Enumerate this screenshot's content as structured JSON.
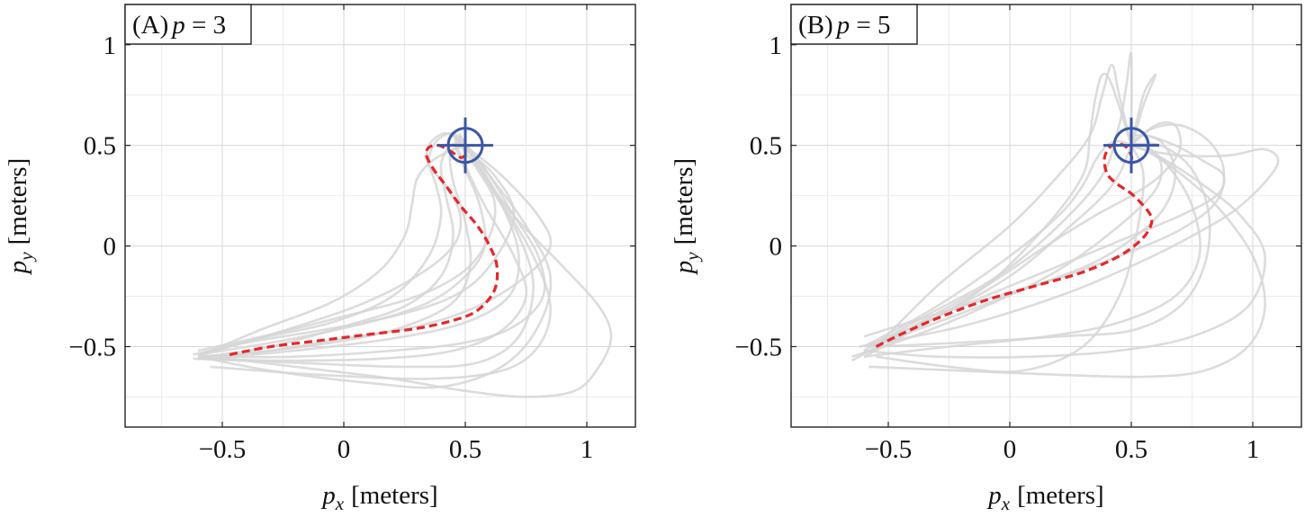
{
  "chart_data": [
    {
      "type": "line",
      "panel_label": "(A)",
      "title": "p = 3",
      "title_var": "p",
      "title_rest": " = 3",
      "xlabel_var": "p",
      "xlabel_sub": "x",
      "xlabel_unit": "[meters]",
      "ylabel_var": "p",
      "ylabel_sub": "y",
      "ylabel_unit": "[meters]",
      "xlim": [
        -0.9,
        1.2
      ],
      "ylim": [
        -0.9,
        1.2
      ],
      "xticks": [
        -0.5,
        0,
        0.5,
        1
      ],
      "xtick_labels": [
        "−0.5",
        "0",
        "0.5",
        "1"
      ],
      "yticks": [
        -0.5,
        0,
        0.5,
        1
      ],
      "ytick_labels": [
        "−0.5",
        "0",
        "0.5",
        "1"
      ],
      "grid": true,
      "target": {
        "x": 0.5,
        "y": 0.5,
        "color": "#3a56a6"
      },
      "highlight": {
        "color": "#e8262a",
        "style": "dashed",
        "x": [
          -0.47,
          -0.3,
          -0.1,
          0.1,
          0.3,
          0.45,
          0.55,
          0.62,
          0.63,
          0.6,
          0.55,
          0.48,
          0.42,
          0.37,
          0.34,
          0.35,
          0.39,
          0.44,
          0.48,
          0.5
        ],
        "y": [
          -0.54,
          -0.5,
          -0.47,
          -0.44,
          -0.41,
          -0.37,
          -0.32,
          -0.22,
          -0.1,
          0.0,
          0.1,
          0.2,
          0.3,
          0.38,
          0.45,
          0.49,
          0.5,
          0.47,
          0.44,
          0.45
        ]
      },
      "series": [
        {
          "x": [
            -0.62,
            -0.4,
            -0.1,
            0.2,
            0.45,
            0.6,
            0.7,
            0.62,
            0.5,
            0.45,
            0.5
          ],
          "y": [
            -0.54,
            -0.48,
            -0.42,
            -0.35,
            -0.25,
            -0.1,
            0.15,
            0.35,
            0.48,
            0.55,
            0.5
          ]
        },
        {
          "x": [
            -0.6,
            -0.3,
            0.0,
            0.3,
            0.55,
            0.75,
            0.85,
            0.8,
            0.65,
            0.5,
            0.48,
            0.5
          ],
          "y": [
            -0.56,
            -0.52,
            -0.46,
            -0.4,
            -0.3,
            -0.15,
            0.0,
            0.15,
            0.35,
            0.5,
            0.55,
            0.5
          ]
        },
        {
          "x": [
            -0.55,
            -0.2,
            0.2,
            0.5,
            0.75,
            0.95,
            1.05,
            1.1,
            1.05,
            0.9,
            0.7,
            0.55,
            0.48,
            0.5
          ],
          "y": [
            -0.55,
            -0.6,
            -0.66,
            -0.72,
            -0.75,
            -0.72,
            -0.6,
            -0.45,
            -0.3,
            -0.1,
            0.15,
            0.4,
            0.55,
            0.5
          ]
        },
        {
          "x": [
            -0.6,
            -0.3,
            0.1,
            0.4,
            0.65,
            0.8,
            0.85,
            0.75,
            0.6,
            0.5,
            0.5
          ],
          "y": [
            -0.55,
            -0.62,
            -0.68,
            -0.7,
            -0.6,
            -0.4,
            -0.15,
            0.1,
            0.35,
            0.5,
            0.5
          ]
        },
        {
          "x": [
            -0.58,
            -0.35,
            -0.05,
            0.2,
            0.35,
            0.4,
            0.38,
            0.35,
            0.38,
            0.45,
            0.5
          ],
          "y": [
            -0.54,
            -0.46,
            -0.38,
            -0.25,
            -0.05,
            0.15,
            0.3,
            0.42,
            0.52,
            0.56,
            0.5
          ]
        },
        {
          "x": [
            -0.6,
            -0.3,
            0.05,
            0.3,
            0.45,
            0.48,
            0.42,
            0.35,
            0.35,
            0.42,
            0.5
          ],
          "y": [
            -0.54,
            -0.44,
            -0.3,
            -0.15,
            0.0,
            0.15,
            0.3,
            0.4,
            0.5,
            0.56,
            0.5
          ]
        },
        {
          "x": [
            -0.62,
            -0.2,
            0.25,
            0.55,
            0.72,
            0.78,
            0.72,
            0.6,
            0.52,
            0.5
          ],
          "y": [
            -0.56,
            -0.58,
            -0.6,
            -0.58,
            -0.45,
            -0.2,
            0.05,
            0.3,
            0.46,
            0.5
          ]
        },
        {
          "x": [
            -0.6,
            -0.2,
            0.2,
            0.5,
            0.7,
            0.82,
            0.8,
            0.7,
            0.6,
            0.52,
            0.5
          ],
          "y": [
            -0.55,
            -0.55,
            -0.52,
            -0.48,
            -0.4,
            -0.25,
            -0.05,
            0.15,
            0.35,
            0.48,
            0.5
          ]
        },
        {
          "x": [
            -0.57,
            -0.3,
            0.0,
            0.25,
            0.4,
            0.45,
            0.42,
            0.4,
            0.44,
            0.5
          ],
          "y": [
            -0.55,
            -0.5,
            -0.4,
            -0.3,
            -0.15,
            0.05,
            0.25,
            0.4,
            0.5,
            0.5
          ]
        },
        {
          "x": [
            -0.6,
            -0.25,
            0.15,
            0.45,
            0.65,
            0.75,
            0.7,
            0.58,
            0.5,
            0.46,
            0.5
          ],
          "y": [
            -0.56,
            -0.57,
            -0.56,
            -0.52,
            -0.42,
            -0.25,
            -0.05,
            0.2,
            0.4,
            0.52,
            0.5
          ]
        },
        {
          "x": [
            -0.6,
            -0.25,
            0.1,
            0.35,
            0.5,
            0.58,
            0.56,
            0.5,
            0.46,
            0.5
          ],
          "y": [
            -0.54,
            -0.47,
            -0.38,
            -0.28,
            -0.15,
            0.0,
            0.2,
            0.38,
            0.5,
            0.5
          ]
        },
        {
          "x": [
            -0.6,
            -0.35,
            -0.05,
            0.15,
            0.25,
            0.28,
            0.3,
            0.36,
            0.45,
            0.5
          ],
          "y": [
            -0.55,
            -0.42,
            -0.28,
            -0.12,
            0.05,
            0.2,
            0.33,
            0.42,
            0.48,
            0.5
          ]
        },
        {
          "x": [
            -0.55,
            -0.1,
            0.35,
            0.65,
            0.8,
            0.85,
            0.78,
            0.65,
            0.55,
            0.5
          ],
          "y": [
            -0.6,
            -0.64,
            -0.66,
            -0.62,
            -0.5,
            -0.3,
            -0.05,
            0.22,
            0.42,
            0.5
          ]
        },
        {
          "x": [
            -0.6,
            -0.3,
            0.0,
            0.3,
            0.5,
            0.6,
            0.62,
            0.55,
            0.48,
            0.5
          ],
          "y": [
            -0.52,
            -0.44,
            -0.35,
            -0.25,
            -0.12,
            0.05,
            0.22,
            0.38,
            0.5,
            0.5
          ]
        },
        {
          "x": [
            -0.56,
            -0.2,
            0.2,
            0.5,
            0.68,
            0.72,
            0.66,
            0.56,
            0.5
          ],
          "y": [
            -0.56,
            -0.52,
            -0.46,
            -0.38,
            -0.25,
            -0.05,
            0.18,
            0.38,
            0.5
          ]
        },
        {
          "x": [
            -0.6,
            -0.3,
            0.0,
            0.25,
            0.45,
            0.52,
            0.5,
            0.45,
            0.44,
            0.5
          ],
          "y": [
            -0.55,
            -0.52,
            -0.47,
            -0.4,
            -0.28,
            -0.1,
            0.12,
            0.32,
            0.46,
            0.5
          ]
        }
      ]
    },
    {
      "type": "line",
      "panel_label": "(B)",
      "title": "p = 5",
      "title_var": "p",
      "title_rest": " = 5",
      "xlabel_var": "p",
      "xlabel_sub": "x",
      "xlabel_unit": "[meters]",
      "ylabel_var": "p",
      "ylabel_sub": "y",
      "ylabel_unit": "[meters]",
      "xlim": [
        -0.9,
        1.2
      ],
      "ylim": [
        -0.9,
        1.2
      ],
      "xticks": [
        -0.5,
        0,
        0.5,
        1
      ],
      "xtick_labels": [
        "−0.5",
        "0",
        "0.5",
        "1"
      ],
      "yticks": [
        -0.5,
        0,
        0.5,
        1
      ],
      "ytick_labels": [
        "−0.5",
        "0",
        "0.5",
        "1"
      ],
      "grid": true,
      "target": {
        "x": 0.5,
        "y": 0.5,
        "color": "#3a56a6"
      },
      "highlight": {
        "color": "#e8262a",
        "style": "dashed",
        "x": [
          -0.55,
          -0.45,
          -0.3,
          -0.1,
          0.1,
          0.3,
          0.45,
          0.54,
          0.58,
          0.58,
          0.55,
          0.5,
          0.44,
          0.4,
          0.39,
          0.42,
          0.47,
          0.5,
          0.5
        ],
        "y": [
          -0.5,
          -0.44,
          -0.36,
          -0.27,
          -0.2,
          -0.13,
          -0.05,
          0.03,
          0.1,
          0.15,
          0.2,
          0.26,
          0.31,
          0.36,
          0.44,
          0.5,
          0.5,
          0.45,
          0.4
        ]
      },
      "series": [
        {
          "x": [
            -0.65,
            -0.4,
            -0.1,
            0.2,
            0.45,
            0.6,
            0.62,
            0.55,
            0.5
          ],
          "y": [
            -0.55,
            -0.45,
            -0.3,
            -0.12,
            0.1,
            0.28,
            0.42,
            0.5,
            0.5
          ]
        },
        {
          "x": [
            -0.6,
            -0.3,
            0.0,
            0.2,
            0.3,
            0.35,
            0.4,
            0.45,
            0.5
          ],
          "y": [
            -0.5,
            -0.3,
            -0.05,
            0.15,
            0.3,
            0.42,
            0.5,
            0.52,
            0.5
          ]
        },
        {
          "x": [
            -0.58,
            -0.2,
            0.2,
            0.5,
            0.7,
            0.85,
            0.88,
            0.8,
            0.68,
            0.55,
            0.5
          ],
          "y": [
            -0.5,
            -0.3,
            -0.1,
            0.05,
            0.15,
            0.25,
            0.35,
            0.42,
            0.5,
            0.55,
            0.5
          ]
        },
        {
          "x": [
            -0.55,
            -0.3,
            0.0,
            0.2,
            0.33,
            0.38,
            0.42,
            0.45,
            0.5
          ],
          "y": [
            -0.5,
            -0.2,
            0.1,
            0.35,
            0.55,
            0.75,
            0.9,
            0.75,
            0.5
          ]
        },
        {
          "x": [
            -0.62,
            -0.2,
            0.2,
            0.5,
            0.75,
            0.95,
            1.1,
            1.05,
            0.9,
            0.7,
            0.55,
            0.5
          ],
          "y": [
            -0.5,
            -0.4,
            -0.25,
            -0.1,
            0.05,
            0.2,
            0.4,
            0.48,
            0.45,
            0.45,
            0.48,
            0.5
          ]
        },
        {
          "x": [
            -0.6,
            -0.3,
            0.1,
            0.45,
            0.75,
            0.98,
            1.05,
            0.95,
            0.8,
            0.65,
            0.55,
            0.5
          ],
          "y": [
            -0.52,
            -0.55,
            -0.55,
            -0.52,
            -0.45,
            -0.3,
            -0.05,
            0.15,
            0.3,
            0.42,
            0.48,
            0.5
          ]
        },
        {
          "x": [
            -0.58,
            -0.2,
            0.2,
            0.55,
            0.8,
            0.98,
            1.05,
            1.0,
            0.85,
            0.68,
            0.55,
            0.5
          ],
          "y": [
            -0.6,
            -0.62,
            -0.64,
            -0.65,
            -0.62,
            -0.5,
            -0.3,
            -0.05,
            0.2,
            0.38,
            0.48,
            0.5
          ]
        },
        {
          "x": [
            -0.55,
            -0.25,
            0.05,
            0.3,
            0.45,
            0.52,
            0.55,
            0.5
          ],
          "y": [
            -0.55,
            -0.6,
            -0.62,
            -0.5,
            -0.25,
            0.05,
            0.35,
            0.5
          ]
        },
        {
          "x": [
            -0.6,
            -0.4,
            -0.1,
            0.15,
            0.3,
            0.33,
            0.35,
            0.38,
            0.42,
            0.5
          ],
          "y": [
            -0.55,
            -0.42,
            -0.2,
            0.1,
            0.35,
            0.55,
            0.72,
            0.85,
            0.8,
            0.5
          ]
        },
        {
          "x": [
            -0.6,
            -0.3,
            0.0,
            0.25,
            0.42,
            0.5,
            0.55,
            0.6,
            0.55,
            0.5
          ],
          "y": [
            -0.5,
            -0.35,
            -0.15,
            0.1,
            0.3,
            0.5,
            0.7,
            0.85,
            0.75,
            0.5
          ]
        },
        {
          "x": [
            -0.65,
            -0.4,
            -0.1,
            0.15,
            0.35,
            0.5,
            0.62,
            0.7,
            0.68,
            0.6,
            0.5
          ],
          "y": [
            -0.57,
            -0.4,
            -0.2,
            0.0,
            0.15,
            0.25,
            0.35,
            0.48,
            0.6,
            0.6,
            0.5
          ]
        },
        {
          "x": [
            -0.6,
            -0.2,
            0.15,
            0.45,
            0.7,
            0.85,
            0.88,
            0.82,
            0.7,
            0.58,
            0.5
          ],
          "y": [
            -0.45,
            -0.3,
            -0.18,
            -0.05,
            0.08,
            0.22,
            0.38,
            0.52,
            0.6,
            0.58,
            0.5
          ]
        },
        {
          "x": [
            -0.55,
            -0.2,
            0.2,
            0.5,
            0.7,
            0.8,
            0.82,
            0.75,
            0.62,
            0.5
          ],
          "y": [
            -0.5,
            -0.48,
            -0.45,
            -0.42,
            -0.3,
            -0.1,
            0.15,
            0.38,
            0.5,
            0.5
          ]
        },
        {
          "x": [
            -0.6,
            -0.35,
            -0.05,
            0.2,
            0.38,
            0.45,
            0.48,
            0.5,
            0.5
          ],
          "y": [
            -0.52,
            -0.35,
            -0.15,
            0.1,
            0.35,
            0.6,
            0.8,
            0.95,
            0.5
          ]
        },
        {
          "x": [
            -0.58,
            -0.3,
            0.05,
            0.35,
            0.55,
            0.65,
            0.68,
            0.62,
            0.52,
            0.5
          ],
          "y": [
            -0.5,
            -0.38,
            -0.22,
            -0.08,
            0.08,
            0.22,
            0.38,
            0.52,
            0.55,
            0.5
          ]
        },
        {
          "x": [
            -0.6,
            -0.25,
            0.15,
            0.45,
            0.68,
            0.78,
            0.75,
            0.65,
            0.55,
            0.5
          ],
          "y": [
            -0.55,
            -0.5,
            -0.45,
            -0.38,
            -0.25,
            -0.05,
            0.2,
            0.4,
            0.5,
            0.5
          ]
        }
      ]
    }
  ]
}
